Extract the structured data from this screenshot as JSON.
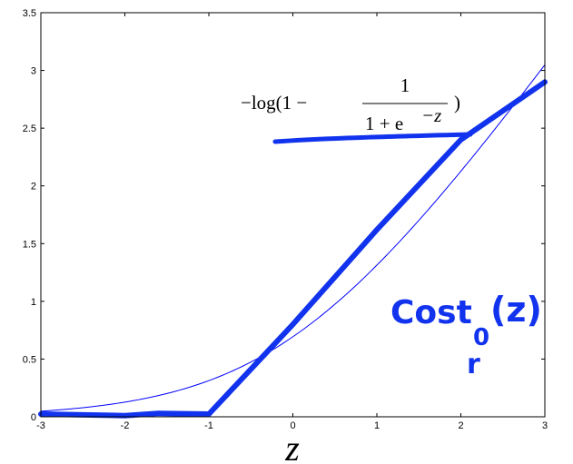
{
  "chart_data": {
    "type": "line",
    "title": "",
    "xlabel": "z",
    "ylabel": "",
    "xlim": [
      -3,
      3
    ],
    "ylim": [
      0,
      3.5
    ],
    "xticks": [
      "-3",
      "-2",
      "-1",
      "0",
      "1",
      "2",
      "3"
    ],
    "yticks": [
      "0",
      "0.5",
      "1",
      "1.5",
      "2",
      "2.5",
      "3",
      "3.5"
    ],
    "grid": false,
    "legend": "none",
    "series": [
      {
        "name": "",
        "style": "thin",
        "color": "#0000ff",
        "function": "-log(1 - 1/(1+exp(-z)))",
        "x": [
          -3,
          -2.5,
          -2,
          -1.5,
          -1,
          -0.5,
          0,
          0.5,
          1,
          1.5,
          2,
          2.5,
          3
        ],
        "y": [
          0.049,
          0.079,
          0.127,
          0.201,
          0.313,
          0.474,
          0.693,
          0.974,
          1.313,
          1.701,
          2.127,
          2.579,
          3.049
        ]
      },
      {
        "name": "",
        "style": "hand-drawn thick",
        "color": "#1133ee",
        "x": [
          -3,
          -2,
          -1.6,
          -1,
          -1,
          0,
          1,
          2,
          3
        ],
        "y": [
          0,
          0.01,
          0.03,
          0,
          0,
          0.8,
          1.62,
          2.4,
          2.9
        ]
      }
    ],
    "annotations": {
      "formula": {
        "prefix": "−log(1 −",
        "numerator": "1",
        "denominator": "1 + e",
        "exponent": "−z",
        "suffix": ")"
      },
      "handwritten_label": {
        "main": "Cost",
        "subscript": "0",
        "argument": "(z)",
        "scribble": "r"
      }
    }
  }
}
